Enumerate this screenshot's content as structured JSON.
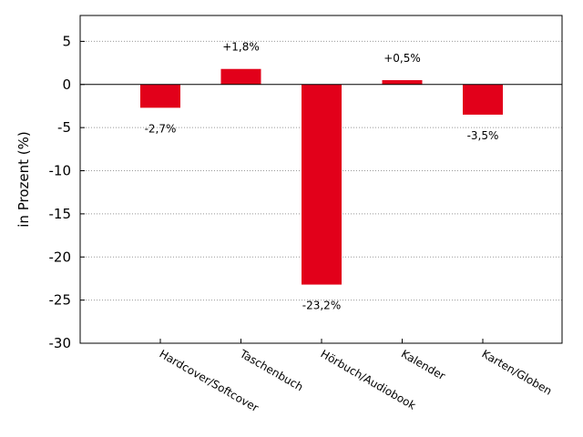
{
  "chart_data": {
    "type": "bar",
    "categories": [
      "Hardcover/Softcover",
      "Taschenbuch",
      "Hörbuch/Audiobook",
      "Kalender",
      "Karten/Globen"
    ],
    "values": [
      -2.7,
      1.8,
      -23.2,
      0.5,
      -3.5
    ],
    "data_labels": [
      "-2,7%",
      "+1,8%",
      "-23,2%",
      "+0,5%",
      "-3,5%"
    ],
    "ylabel": "in Prozent (%)",
    "ylim": [
      -30,
      8
    ],
    "yticks": [
      5,
      0,
      -5,
      -10,
      -15,
      -20,
      -25,
      -30
    ],
    "ytick_labels": [
      "5",
      "0",
      "-5",
      "-10",
      "-15",
      "-20",
      "-25",
      "-30"
    ],
    "grid": "horizontal dotted",
    "bar_color": "#e2001a",
    "zero_line": true
  }
}
